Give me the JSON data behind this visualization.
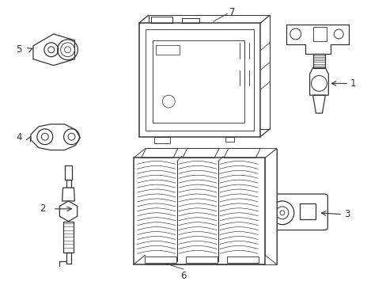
{
  "background_color": "#ffffff",
  "line_color": "#333333",
  "figsize": [
    4.89,
    3.6
  ],
  "dpi": 100,
  "label_fontsize": 8.5
}
